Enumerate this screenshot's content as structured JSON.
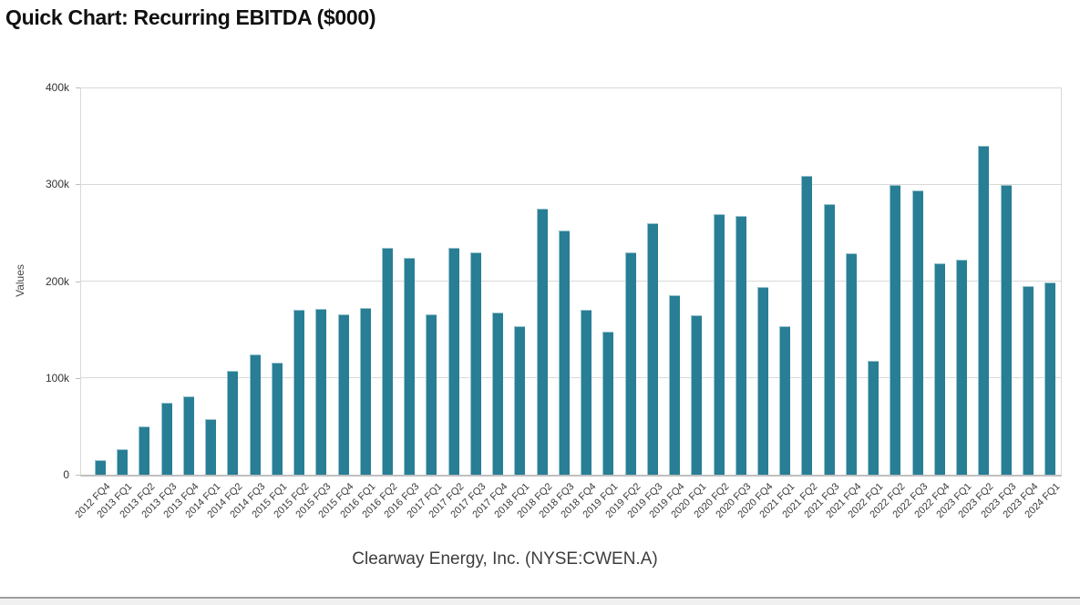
{
  "header": {
    "title": "Quick Chart: Recurring EBITDA ($000)"
  },
  "footer": {
    "company": "Clearway Energy, Inc. (NYSE:CWEN.A)"
  },
  "colors": {
    "bar": "#287E94",
    "grid": "#D9D9D9",
    "axis_line": "#BFBFBF",
    "tick_text": "#333333",
    "xlabel_text": "#3A3A3A",
    "ylabel_text": "#4A4A4A",
    "title_text": "#101010",
    "caption_text": "#3D3D3D",
    "divider": "#9D9D9D",
    "strip": "#F0F0F0"
  },
  "chart_data": {
    "type": "bar",
    "title": "Quick Chart: Recurring EBITDA ($000)",
    "subtitle": "Clearway Energy, Inc. (NYSE:CWEN.A)",
    "xlabel": "",
    "ylabel": "Values",
    "ylim": [
      0,
      400000
    ],
    "grid": true,
    "legend_position": "none",
    "yticks": [
      {
        "value": 0,
        "label": "0"
      },
      {
        "value": 100000,
        "label": "100k"
      },
      {
        "value": 200000,
        "label": "200k"
      },
      {
        "value": 300000,
        "label": "300k"
      },
      {
        "value": 400000,
        "label": "400k"
      }
    ],
    "categories": [
      "2012 FQ4",
      "2013 FQ1",
      "2013 FQ2",
      "2013 FQ3",
      "2013 FQ4",
      "2014 FQ1",
      "2014 FQ2",
      "2014 FQ3",
      "2015 FQ1",
      "2015 FQ2",
      "2015 FQ3",
      "2015 FQ4",
      "2016 FQ1",
      "2016 FQ2",
      "2016 FQ3",
      "2017 FQ1",
      "2017 FQ2",
      "2017 FQ3",
      "2017 FQ4",
      "2018 FQ1",
      "2018 FQ2",
      "2018 FQ3",
      "2018 FQ4",
      "2019 FQ1",
      "2019 FQ2",
      "2019 FQ3",
      "2019 FQ4",
      "2020 FQ1",
      "2020 FQ2",
      "2020 FQ3",
      "2020 FQ4",
      "2021 FQ1",
      "2021 FQ2",
      "2021 FQ3",
      "2021 FQ4",
      "2022 FQ1",
      "2022 FQ2",
      "2022 FQ3",
      "2022 FQ4",
      "2023 FQ1",
      "2023 FQ2",
      "2023 FQ3",
      "2023 FQ4",
      "2024 FQ1"
    ],
    "values": [
      15000,
      26000,
      50000,
      74000,
      81000,
      57000,
      107000,
      124000,
      116000,
      170000,
      171000,
      166000,
      172000,
      234000,
      224000,
      166000,
      234000,
      230000,
      168000,
      153000,
      275000,
      252000,
      170000,
      148000,
      230000,
      260000,
      185000,
      165000,
      269000,
      267000,
      194000,
      153000,
      309000,
      280000,
      229000,
      118000,
      299000,
      294000,
      218000,
      222000,
      340000,
      299000,
      195000,
      199000
    ]
  }
}
